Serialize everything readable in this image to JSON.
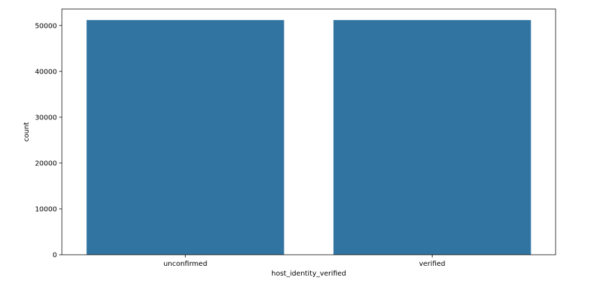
{
  "chart_data": {
    "type": "bar",
    "categories": [
      "unconfirmed",
      "verified"
    ],
    "values": [
      51200,
      51200
    ],
    "xlabel": "host_identity_verified",
    "ylabel": "count",
    "ylim": [
      0,
      53600
    ],
    "yticks": [
      0,
      10000,
      20000,
      30000,
      40000,
      50000
    ],
    "grid": false,
    "legend": "none",
    "bar_color": "#3274a1",
    "axis_color": "#000000"
  }
}
